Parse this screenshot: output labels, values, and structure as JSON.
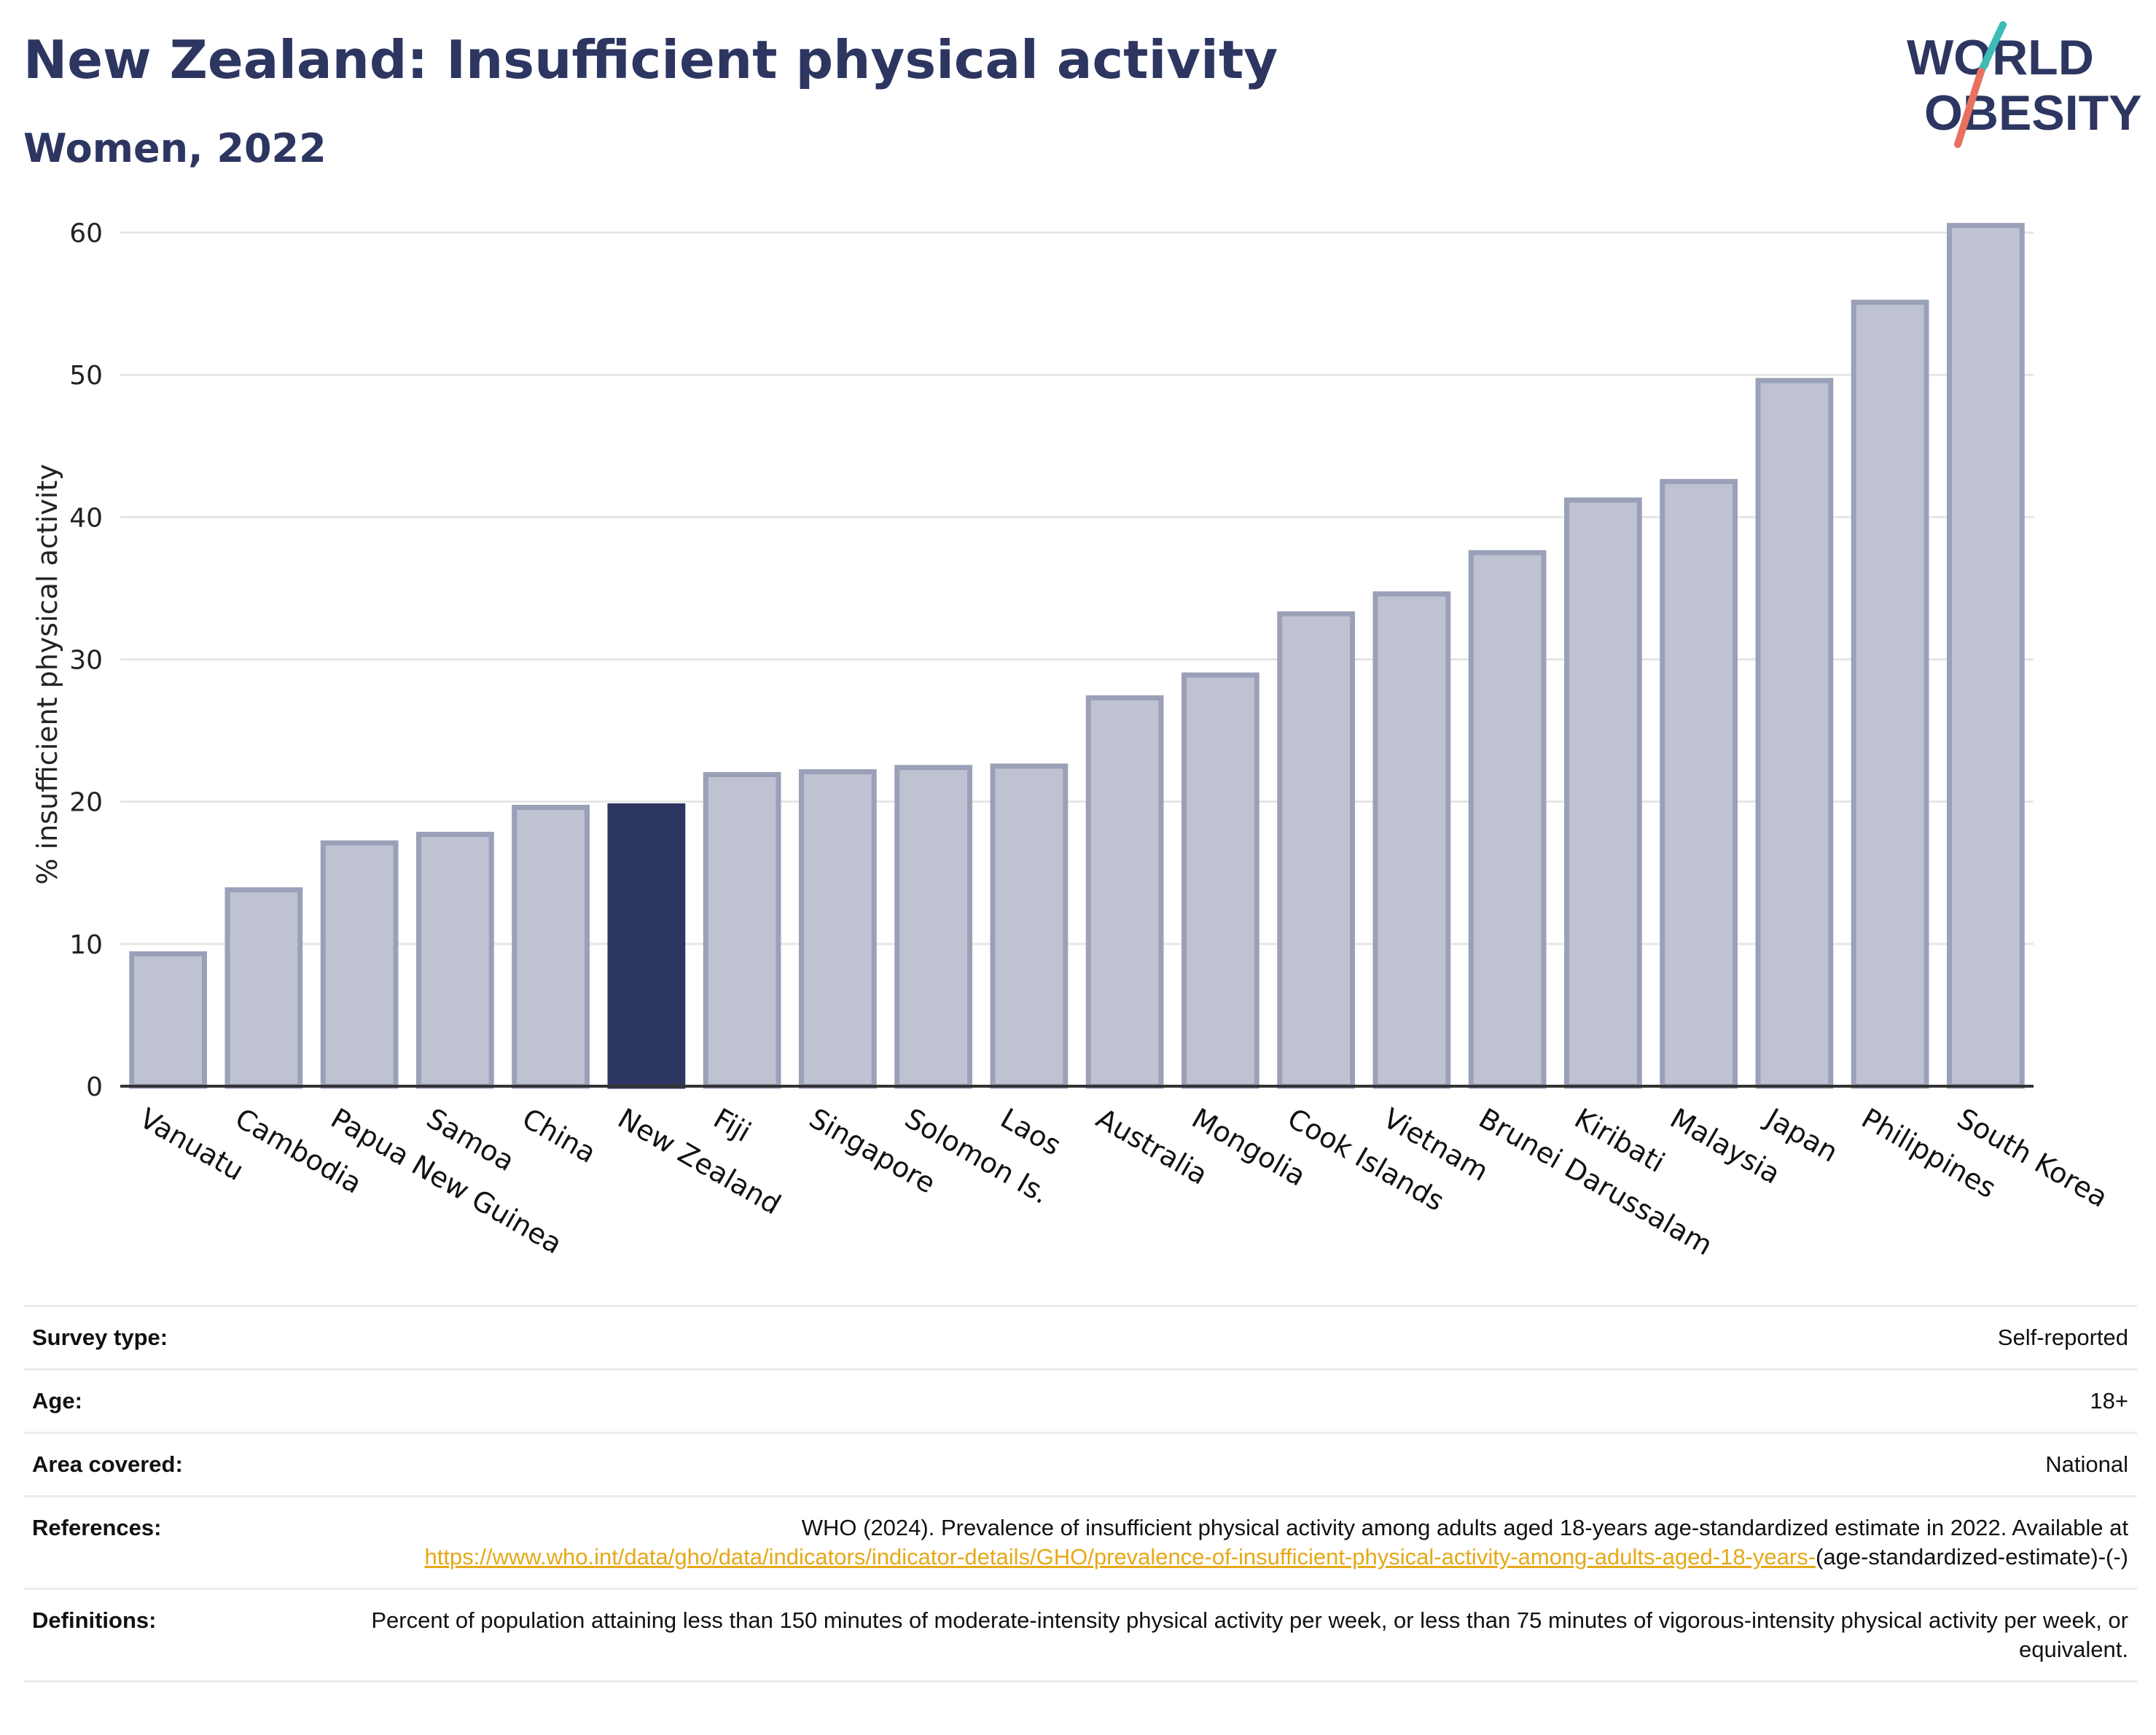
{
  "header": {
    "title": "New Zealand: Insufficient physical activity",
    "subtitle": "Women, 2022"
  },
  "logo": {
    "line1": "WORLD",
    "line2": "OBESITY",
    "accent_teal": "#3dbcb8",
    "accent_coral": "#e8705f"
  },
  "colors": {
    "bar": "#bfc3d1",
    "bar_stroke": "#9aa0b8",
    "highlight": "#2d3561",
    "link": "#e6a817"
  },
  "chart_data": {
    "type": "bar",
    "categories": [
      "Vanuatu",
      "Cambodia",
      "Papua New Guinea",
      "Samoa",
      "China",
      "New Zealand",
      "Fiji",
      "Singapore",
      "Solomon Is.",
      "Laos",
      "Australia",
      "Mongolia",
      "Cook Islands",
      "Vietnam",
      "Brunei Darussalam",
      "Kiribati",
      "Malaysia",
      "Japan",
      "Philippines",
      "South Korea"
    ],
    "values": [
      9.3,
      13.8,
      17.1,
      17.7,
      19.6,
      19.7,
      21.9,
      22.1,
      22.4,
      22.5,
      27.3,
      28.9,
      33.2,
      34.6,
      37.5,
      41.2,
      42.5,
      49.6,
      55.1,
      60.5
    ],
    "highlight": "New Zealand",
    "title": "New Zealand: Insufficient physical activity",
    "subtitle": "Women, 2022",
    "xlabel": "",
    "ylabel": "% insufficient physical activity",
    "ylim": [
      0,
      62
    ],
    "yticks": [
      0,
      10,
      20,
      30,
      40,
      50,
      60
    ],
    "grid": true,
    "legend": "none"
  },
  "info": [
    {
      "label": "Survey type:",
      "value": "Self-reported"
    },
    {
      "label": "Age:",
      "value": "18+"
    },
    {
      "label": "Area covered:",
      "value": "National"
    }
  ],
  "references": {
    "label": "References:",
    "text": "WHO (2024). Prevalence of insufficient physical activity among adults aged 18-years age-standardized estimate in 2022. Available at ",
    "link": "https://www.who.int/data/gho/data/indicators/indicator-details/GHO/prevalence-of-insufficient-physical-activity-among-adults-aged-18-years-",
    "suffix": "(age-standardized-estimate)-(-)"
  },
  "definitions": {
    "label": "Definitions:",
    "text": "Percent of population attaining less than 150 minutes of moderate-intensity physical activity per week, or less than 75 minutes of vigorous-intensity physical activity per week, or equivalent."
  }
}
